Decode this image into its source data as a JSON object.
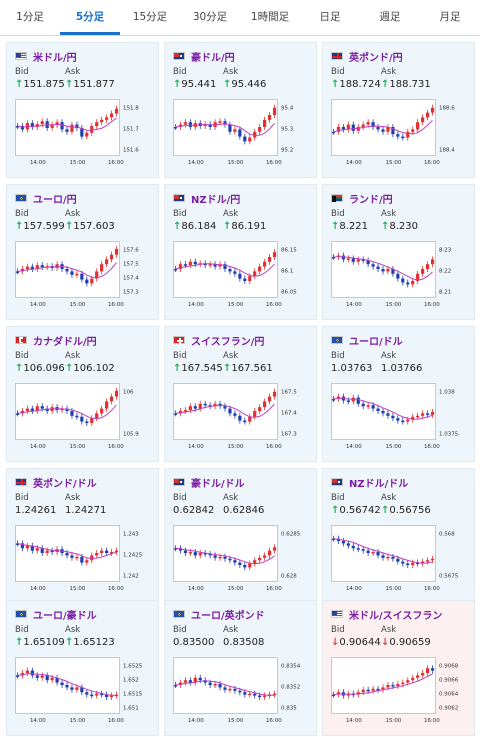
{
  "tabs": [
    {
      "label": "1分足",
      "active": false
    },
    {
      "label": "5分足",
      "active": true
    },
    {
      "label": "15分足",
      "active": false
    },
    {
      "label": "30分足",
      "active": false
    },
    {
      "label": "1時間足",
      "active": false
    },
    {
      "label": "日足",
      "active": false
    },
    {
      "label": "週足",
      "active": false
    },
    {
      "label": "月足",
      "active": false
    }
  ],
  "labels": {
    "bid": "Bid",
    "ask": "Ask"
  },
  "colors": {
    "accent": "#1a73c8",
    "up": "#1bb55c",
    "down": "#e24141",
    "candle_up": "#e23030",
    "candle_down": "#1f3fb0",
    "ma": "#c040c0"
  },
  "pairs": [
    {
      "name": "米ドル/円",
      "flag": "us",
      "bid": "151.875",
      "ask": "151.877",
      "dir": "up",
      "highlight": false,
      "chart": {
        "yticks": [
          "151.8",
          "151.7",
          "151.6"
        ],
        "xticks": [
          "14:00",
          "15:00",
          "16:00"
        ],
        "trend": [
          0.48,
          0.55,
          0.42,
          0.5,
          0.44,
          0.38,
          0.52,
          0.46,
          0.4,
          0.55,
          0.6,
          0.45,
          0.52,
          0.7,
          0.62,
          0.48,
          0.4,
          0.35,
          0.3,
          0.22,
          0.12
        ]
      }
    },
    {
      "name": "豪ドル/円",
      "flag": "au",
      "bid": "95.441",
      "ask": "95.446",
      "dir": "up",
      "highlight": false,
      "chart": {
        "yticks": [
          "95.4",
          "95.3",
          "95.2"
        ],
        "xticks": [
          "14:00",
          "15:00",
          "16:00"
        ],
        "trend": [
          0.5,
          0.45,
          0.4,
          0.5,
          0.42,
          0.48,
          0.44,
          0.5,
          0.4,
          0.38,
          0.45,
          0.6,
          0.55,
          0.7,
          0.8,
          0.72,
          0.6,
          0.5,
          0.35,
          0.25,
          0.1
        ]
      }
    },
    {
      "name": "英ポンド/円",
      "flag": "gb",
      "bid": "188.724",
      "ask": "188.731",
      "dir": "up",
      "highlight": false,
      "chart": {
        "yticks": [
          "188.6",
          "188.4"
        ],
        "xticks": [
          "14:00",
          "15:00",
          "16:00"
        ],
        "trend": [
          0.6,
          0.5,
          0.55,
          0.45,
          0.58,
          0.5,
          0.45,
          0.4,
          0.5,
          0.55,
          0.6,
          0.5,
          0.65,
          0.7,
          0.72,
          0.6,
          0.55,
          0.4,
          0.3,
          0.2,
          0.1
        ]
      }
    },
    {
      "name": "ユーロ/円",
      "flag": "eu",
      "bid": "157.599",
      "ask": "157.603",
      "dir": "up",
      "highlight": false,
      "chart": {
        "yticks": [
          "157.6",
          "157.5",
          "157.4",
          "157.3"
        ],
        "xticks": [
          "14:00",
          "15:00",
          "16:00"
        ],
        "trend": [
          0.55,
          0.5,
          0.45,
          0.5,
          0.42,
          0.46,
          0.44,
          0.48,
          0.4,
          0.5,
          0.55,
          0.62,
          0.6,
          0.72,
          0.8,
          0.7,
          0.55,
          0.4,
          0.3,
          0.2,
          0.08
        ]
      }
    },
    {
      "name": "NZドル/円",
      "flag": "nz",
      "bid": "86.184",
      "ask": "86.191",
      "dir": "up",
      "highlight": false,
      "chart": {
        "yticks": [
          "86.15",
          "86.1",
          "86.05"
        ],
        "xticks": [
          "14:00",
          "15:00",
          "16:00"
        ],
        "trend": [
          0.5,
          0.4,
          0.42,
          0.35,
          0.4,
          0.38,
          0.42,
          0.4,
          0.45,
          0.4,
          0.5,
          0.55,
          0.6,
          0.7,
          0.75,
          0.65,
          0.55,
          0.45,
          0.35,
          0.25,
          0.15
        ]
      }
    },
    {
      "name": "ランド/円",
      "flag": "za",
      "bid": "8.221",
      "ask": "8.230",
      "dir": "up",
      "highlight": false,
      "chart": {
        "yticks": [
          "8.23",
          "8.22",
          "8.21"
        ],
        "xticks": [
          "14:00",
          "15:00",
          "16:00"
        ],
        "trend": [
          0.25,
          0.22,
          0.3,
          0.28,
          0.35,
          0.3,
          0.32,
          0.4,
          0.45,
          0.5,
          0.55,
          0.5,
          0.6,
          0.7,
          0.78,
          0.82,
          0.75,
          0.6,
          0.5,
          0.4,
          0.3
        ]
      }
    },
    {
      "name": "カナダドル/円",
      "flag": "ca",
      "bid": "106.096",
      "ask": "106.102",
      "dir": "up",
      "highlight": false,
      "chart": {
        "yticks": [
          "106",
          "105.9"
        ],
        "xticks": [
          "14:00",
          "15:00",
          "16:00"
        ],
        "trend": [
          0.55,
          0.5,
          0.45,
          0.5,
          0.4,
          0.45,
          0.5,
          0.42,
          0.48,
          0.45,
          0.5,
          0.6,
          0.62,
          0.72,
          0.75,
          0.65,
          0.55,
          0.45,
          0.3,
          0.2,
          0.08
        ]
      }
    },
    {
      "name": "スイスフラン/円",
      "flag": "ch",
      "bid": "167.545",
      "ask": "167.561",
      "dir": "up",
      "highlight": false,
      "chart": {
        "yticks": [
          "167.5",
          "167.4",
          "167.3"
        ],
        "xticks": [
          "14:00",
          "15:00",
          "16:00"
        ],
        "trend": [
          0.55,
          0.5,
          0.48,
          0.4,
          0.45,
          0.35,
          0.38,
          0.4,
          0.35,
          0.4,
          0.45,
          0.55,
          0.6,
          0.7,
          0.72,
          0.62,
          0.5,
          0.42,
          0.3,
          0.2,
          0.1
        ]
      }
    },
    {
      "name": "ユーロ/ドル",
      "flag": "eu",
      "flag2": "us",
      "bid": "1.03763",
      "ask": "1.03766",
      "dir": "none",
      "highlight": false,
      "chart": {
        "yticks": [
          "1.038",
          "1.0375"
        ],
        "xticks": [
          "14:00",
          "15:00",
          "16:00"
        ],
        "trend": [
          0.25,
          0.2,
          0.28,
          0.3,
          0.22,
          0.35,
          0.4,
          0.38,
          0.45,
          0.5,
          0.55,
          0.6,
          0.65,
          0.7,
          0.72,
          0.68,
          0.62,
          0.6,
          0.55,
          0.58,
          0.52
        ]
      }
    },
    {
      "name": "英ポンド/ドル",
      "flag": "gb",
      "flag2": "us",
      "bid": "1.24261",
      "ask": "1.24271",
      "dir": "none",
      "highlight": false,
      "chart": {
        "yticks": [
          "1.243",
          "1.2425",
          "1.242"
        ],
        "xticks": [
          "14:00",
          "15:00",
          "16:00"
        ],
        "trend": [
          0.3,
          0.4,
          0.35,
          0.45,
          0.4,
          0.5,
          0.45,
          0.48,
          0.42,
          0.5,
          0.55,
          0.6,
          0.58,
          0.7,
          0.65,
          0.55,
          0.5,
          0.45,
          0.5,
          0.48,
          0.45
        ]
      }
    },
    {
      "name": "豪ドル/ドル",
      "flag": "au",
      "flag2": "us",
      "bid": "0.62842",
      "ask": "0.62846",
      "dir": "none",
      "highlight": false,
      "chart": {
        "yticks": [
          "0.6285",
          "0.628"
        ],
        "xticks": [
          "14:00",
          "15:00",
          "16:00"
        ],
        "trend": [
          0.4,
          0.45,
          0.5,
          0.48,
          0.55,
          0.5,
          0.52,
          0.55,
          0.6,
          0.58,
          0.62,
          0.65,
          0.7,
          0.75,
          0.8,
          0.72,
          0.65,
          0.6,
          0.55,
          0.45,
          0.38
        ]
      }
    },
    {
      "name": "NZドル/ドル",
      "flag": "nz",
      "flag2": "us",
      "bid": "0.56742",
      "ask": "0.56756",
      "dir": "up",
      "highlight": false,
      "chart": {
        "yticks": [
          "0.568",
          "0.5675"
        ],
        "xticks": [
          "14:00",
          "15:00",
          "16:00"
        ],
        "trend": [
          0.2,
          0.25,
          0.3,
          0.35,
          0.4,
          0.42,
          0.45,
          0.5,
          0.48,
          0.55,
          0.6,
          0.58,
          0.62,
          0.68,
          0.72,
          0.75,
          0.7,
          0.72,
          0.68,
          0.65,
          0.62
        ]
      }
    },
    {
      "name": "ユーロ/豪ドル",
      "flag": "eu",
      "flag2": "au",
      "bid": "1.65109",
      "ask": "1.65123",
      "dir": "up",
      "highlight": false,
      "chart": {
        "yticks": [
          "1.6525",
          "1.652",
          "1.6515",
          "1.651"
        ],
        "xticks": [
          "14:00",
          "15:00",
          "16:00"
        ],
        "trend": [
          0.3,
          0.25,
          0.2,
          0.3,
          0.35,
          0.3,
          0.4,
          0.35,
          0.45,
          0.5,
          0.55,
          0.6,
          0.55,
          0.65,
          0.7,
          0.72,
          0.68,
          0.7,
          0.75,
          0.72,
          0.7
        ]
      }
    },
    {
      "name": "ユーロ/英ポンド",
      "flag": "eu",
      "flag2": "gb",
      "bid": "0.83500",
      "ask": "0.83508",
      "dir": "none",
      "highlight": false,
      "chart": {
        "yticks": [
          "0.8354",
          "0.8352",
          "0.835"
        ],
        "xticks": [
          "14:00",
          "15:00",
          "16:00"
        ],
        "trend": [
          0.5,
          0.45,
          0.4,
          0.45,
          0.35,
          0.4,
          0.45,
          0.5,
          0.48,
          0.55,
          0.6,
          0.58,
          0.62,
          0.65,
          0.7,
          0.68,
          0.72,
          0.75,
          0.72,
          0.7,
          0.68
        ]
      }
    },
    {
      "name": "米ドル/スイスフラン",
      "flag": "us",
      "flag2": "ch",
      "bid": "0.90644",
      "ask": "0.90659",
      "dir": "down",
      "highlight": true,
      "chart": {
        "yticks": [
          "0.9068",
          "0.9066",
          "0.9064",
          "0.9062"
        ],
        "xticks": [
          "14:00",
          "15:00",
          "16:00"
        ],
        "trend": [
          0.7,
          0.65,
          0.72,
          0.68,
          0.7,
          0.65,
          0.6,
          0.62,
          0.58,
          0.6,
          0.55,
          0.5,
          0.52,
          0.48,
          0.45,
          0.4,
          0.35,
          0.3,
          0.25,
          0.15,
          0.2
        ]
      }
    }
  ]
}
